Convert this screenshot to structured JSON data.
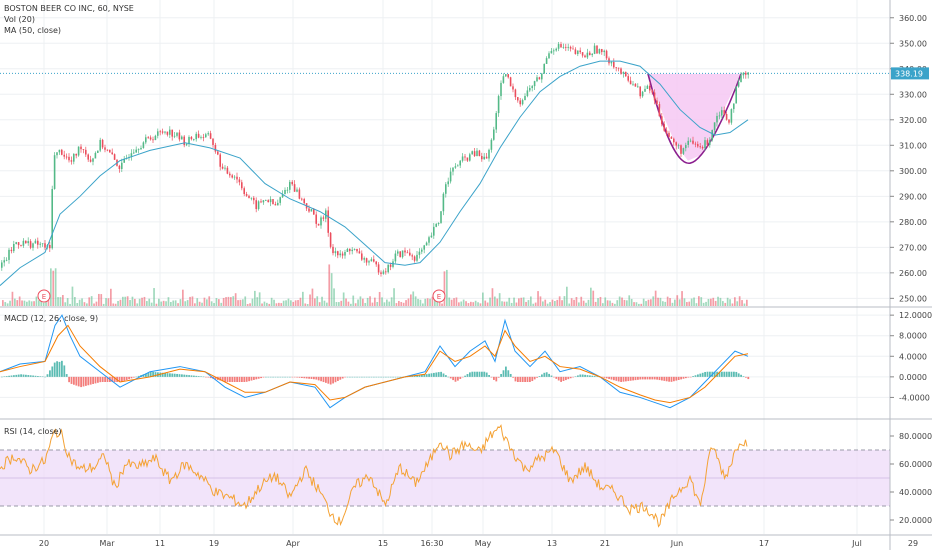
{
  "header": {
    "symbol_title": "BOSTON BEER CO INC, 60, NYSE",
    "volume_legend": "Vol (20)",
    "ma_legend": "MA (50, close)"
  },
  "macd_legend": "MACD (12, 26, close, 9)",
  "rsi_legend": "RSI (14, close)",
  "earnings_marker": "E",
  "last_price_label": "338.19",
  "colors": {
    "up": "#53b987",
    "down": "#eb4d5c",
    "ma": "#3ba3c9",
    "macd_line": "#2196f3",
    "signal_line": "#f57c00",
    "rsi_line": "#f4a235",
    "rsi_band": "#ecd9f8",
    "cup_fill": "#f6c8f3",
    "cup_stroke": "#8b1e8e",
    "price_line": "#3ba3c9"
  },
  "chart_data": [
    {
      "type": "candlestick",
      "title": "BOSTON BEER CO INC, 60, NYSE",
      "y_ticks": [
        "360.00",
        "350.00",
        "340.00",
        "330.00",
        "320.00",
        "310.00",
        "300.00",
        "290.00",
        "280.00",
        "270.00",
        "260.00",
        "250.00"
      ],
      "ylim": [
        247,
        365
      ],
      "x_ticks": [
        "20",
        "Mar",
        "11",
        "19",
        "Apr",
        "15",
        "16:30",
        "May",
        "13",
        "21",
        "Jun",
        "17",
        "Jul",
        "29"
      ],
      "last_price": 338.19,
      "price_path": [
        [
          0,
          262
        ],
        [
          15,
          272
        ],
        [
          40,
          271
        ],
        [
          50,
          269
        ],
        [
          52,
          305
        ],
        [
          60,
          308
        ],
        [
          70,
          303
        ],
        [
          80,
          310
        ],
        [
          90,
          304
        ],
        [
          100,
          311
        ],
        [
          110,
          306
        ],
        [
          120,
          301
        ],
        [
          130,
          308
        ],
        [
          150,
          313
        ],
        [
          165,
          316
        ],
        [
          175,
          314
        ],
        [
          185,
          311
        ],
        [
          195,
          314
        ],
        [
          210,
          313
        ],
        [
          222,
          300
        ],
        [
          235,
          298
        ],
        [
          245,
          291
        ],
        [
          255,
          286
        ],
        [
          265,
          289
        ],
        [
          275,
          286
        ],
        [
          290,
          296
        ],
        [
          300,
          289
        ],
        [
          310,
          284
        ],
        [
          318,
          279
        ],
        [
          325,
          283
        ],
        [
          330,
          270
        ],
        [
          340,
          266
        ],
        [
          350,
          270
        ],
        [
          360,
          266
        ],
        [
          370,
          264
        ],
        [
          380,
          261
        ],
        [
          388,
          262
        ],
        [
          395,
          267
        ],
        [
          405,
          268
        ],
        [
          415,
          266
        ],
        [
          425,
          270
        ],
        [
          432,
          276
        ],
        [
          438,
          280
        ],
        [
          445,
          296
        ],
        [
          455,
          302
        ],
        [
          465,
          305
        ],
        [
          475,
          307
        ],
        [
          485,
          304
        ],
        [
          490,
          310
        ],
        [
          495,
          322
        ],
        [
          500,
          333
        ],
        [
          505,
          338
        ],
        [
          512,
          331
        ],
        [
          520,
          327
        ],
        [
          530,
          333
        ],
        [
          540,
          337
        ],
        [
          548,
          347
        ],
        [
          555,
          349
        ],
        [
          565,
          348
        ],
        [
          575,
          346
        ],
        [
          585,
          345
        ],
        [
          595,
          348
        ],
        [
          605,
          345
        ],
        [
          615,
          341
        ],
        [
          625,
          336
        ],
        [
          632,
          335
        ],
        [
          640,
          330
        ],
        [
          648,
          333
        ],
        [
          655,
          327
        ],
        [
          662,
          318
        ],
        [
          670,
          312
        ],
        [
          680,
          308
        ],
        [
          690,
          311
        ],
        [
          700,
          309
        ],
        [
          708,
          312
        ],
        [
          715,
          321
        ],
        [
          720,
          324
        ],
        [
          728,
          320
        ],
        [
          735,
          331
        ],
        [
          742,
          338
        ],
        [
          748,
          337
        ]
      ],
      "ma_path": [
        [
          0,
          255
        ],
        [
          20,
          262
        ],
        [
          45,
          268
        ],
        [
          60,
          283
        ],
        [
          80,
          290
        ],
        [
          100,
          298
        ],
        [
          120,
          304
        ],
        [
          150,
          308
        ],
        [
          185,
          311
        ],
        [
          210,
          309
        ],
        [
          240,
          305
        ],
        [
          265,
          295
        ],
        [
          290,
          289
        ],
        [
          320,
          284
        ],
        [
          345,
          278
        ],
        [
          365,
          271
        ],
        [
          385,
          264
        ],
        [
          405,
          263
        ],
        [
          420,
          264
        ],
        [
          440,
          272
        ],
        [
          460,
          284
        ],
        [
          480,
          295
        ],
        [
          500,
          309
        ],
        [
          520,
          321
        ],
        [
          540,
          331
        ],
        [
          560,
          337
        ],
        [
          580,
          341
        ],
        [
          600,
          343
        ],
        [
          620,
          343
        ],
        [
          640,
          341
        ],
        [
          660,
          334
        ],
        [
          680,
          324
        ],
        [
          700,
          317
        ],
        [
          715,
          314
        ],
        [
          730,
          315
        ],
        [
          748,
          320
        ]
      ],
      "cup_curve": [
        [
          648,
          338
        ],
        [
          664,
          321
        ],
        [
          676,
          310
        ],
        [
          688,
          304
        ],
        [
          700,
          306
        ],
        [
          712,
          313
        ],
        [
          725,
          325
        ],
        [
          741,
          338
        ]
      ],
      "earnings_x": [
        44,
        439
      ]
    },
    {
      "type": "line",
      "title": "MACD (12, 26, close, 9)",
      "y_ticks": [
        "12.0000",
        "8.0000",
        "4.0000",
        "0.0000",
        "-4.0000"
      ],
      "ylim": [
        -8,
        13
      ],
      "series": [
        {
          "kind": "macd",
          "values": [
            [
              0,
              1
            ],
            [
              20,
              2.5
            ],
            [
              45,
              3
            ],
            [
              55,
              10
            ],
            [
              62,
              12
            ],
            [
              70,
              8
            ],
            [
              80,
              4
            ],
            [
              100,
              1
            ],
            [
              120,
              -2
            ],
            [
              150,
              1
            ],
            [
              180,
              2
            ],
            [
              205,
              1
            ],
            [
              225,
              -2
            ],
            [
              245,
              -4
            ],
            [
              265,
              -3
            ],
            [
              290,
              -1
            ],
            [
              315,
              -2
            ],
            [
              330,
              -6
            ],
            [
              345,
              -4
            ],
            [
              365,
              -2
            ],
            [
              385,
              -1
            ],
            [
              405,
              0
            ],
            [
              425,
              1
            ],
            [
              440,
              6
            ],
            [
              455,
              2
            ],
            [
              470,
              5
            ],
            [
              485,
              7
            ],
            [
              495,
              3
            ],
            [
              505,
              11
            ],
            [
              515,
              5
            ],
            [
              530,
              2
            ],
            [
              545,
              5
            ],
            [
              560,
              1
            ],
            [
              580,
              2
            ],
            [
              600,
              0
            ],
            [
              620,
              -3
            ],
            [
              640,
              -4
            ],
            [
              655,
              -5
            ],
            [
              670,
              -6
            ],
            [
              690,
              -4
            ],
            [
              705,
              -1
            ],
            [
              720,
              2
            ],
            [
              735,
              5
            ],
            [
              748,
              4
            ]
          ]
        },
        {
          "kind": "signal",
          "values": [
            [
              0,
              1
            ],
            [
              20,
              2
            ],
            [
              45,
              3
            ],
            [
              58,
              8
            ],
            [
              68,
              10
            ],
            [
              80,
              6
            ],
            [
              100,
              2
            ],
            [
              120,
              -1
            ],
            [
              150,
              0
            ],
            [
              180,
              1.5
            ],
            [
              205,
              1
            ],
            [
              225,
              -1
            ],
            [
              245,
              -3
            ],
            [
              265,
              -3
            ],
            [
              290,
              -1
            ],
            [
              315,
              -1.5
            ],
            [
              330,
              -4.5
            ],
            [
              345,
              -4
            ],
            [
              365,
              -2
            ],
            [
              385,
              -1
            ],
            [
              405,
              0
            ],
            [
              425,
              0.5
            ],
            [
              440,
              5
            ],
            [
              455,
              3
            ],
            [
              470,
              4
            ],
            [
              485,
              6
            ],
            [
              495,
              4
            ],
            [
              505,
              9
            ],
            [
              515,
              6
            ],
            [
              530,
              3
            ],
            [
              545,
              4
            ],
            [
              560,
              2
            ],
            [
              580,
              1.5
            ],
            [
              600,
              0
            ],
            [
              620,
              -2
            ],
            [
              640,
              -3.5
            ],
            [
              655,
              -4.5
            ],
            [
              670,
              -5
            ],
            [
              690,
              -4
            ],
            [
              705,
              -2
            ],
            [
              720,
              1
            ],
            [
              735,
              4
            ],
            [
              748,
              4.5
            ]
          ]
        }
      ]
    },
    {
      "type": "line",
      "title": "RSI (14, close)",
      "y_ticks": [
        "80.0000",
        "60.0000",
        "40.0000",
        "20.0000"
      ],
      "ylim": [
        10,
        90
      ],
      "band": [
        30,
        70
      ],
      "values": [
        [
          0,
          58
        ],
        [
          15,
          66
        ],
        [
          30,
          56
        ],
        [
          45,
          62
        ],
        [
          55,
          84
        ],
        [
          62,
          80
        ],
        [
          70,
          64
        ],
        [
          80,
          56
        ],
        [
          95,
          58
        ],
        [
          105,
          66
        ],
        [
          115,
          42
        ],
        [
          125,
          60
        ],
        [
          140,
          58
        ],
        [
          155,
          64
        ],
        [
          170,
          48
        ],
        [
          185,
          60
        ],
        [
          200,
          52
        ],
        [
          215,
          40
        ],
        [
          230,
          36
        ],
        [
          245,
          30
        ],
        [
          260,
          44
        ],
        [
          275,
          52
        ],
        [
          290,
          36
        ],
        [
          305,
          56
        ],
        [
          320,
          40
        ],
        [
          330,
          26
        ],
        [
          340,
          18
        ],
        [
          355,
          44
        ],
        [
          370,
          52
        ],
        [
          385,
          30
        ],
        [
          400,
          58
        ],
        [
          415,
          46
        ],
        [
          430,
          62
        ],
        [
          440,
          78
        ],
        [
          450,
          66
        ],
        [
          465,
          74
        ],
        [
          480,
          68
        ],
        [
          490,
          80
        ],
        [
          500,
          86
        ],
        [
          510,
          72
        ],
        [
          525,
          56
        ],
        [
          540,
          64
        ],
        [
          555,
          70
        ],
        [
          570,
          48
        ],
        [
          585,
          58
        ],
        [
          600,
          44
        ],
        [
          615,
          40
        ],
        [
          630,
          28
        ],
        [
          645,
          30
        ],
        [
          660,
          18
        ],
        [
          675,
          38
        ],
        [
          690,
          50
        ],
        [
          700,
          30
        ],
        [
          712,
          74
        ],
        [
          725,
          50
        ],
        [
          740,
          78
        ],
        [
          748,
          74
        ]
      ]
    }
  ]
}
